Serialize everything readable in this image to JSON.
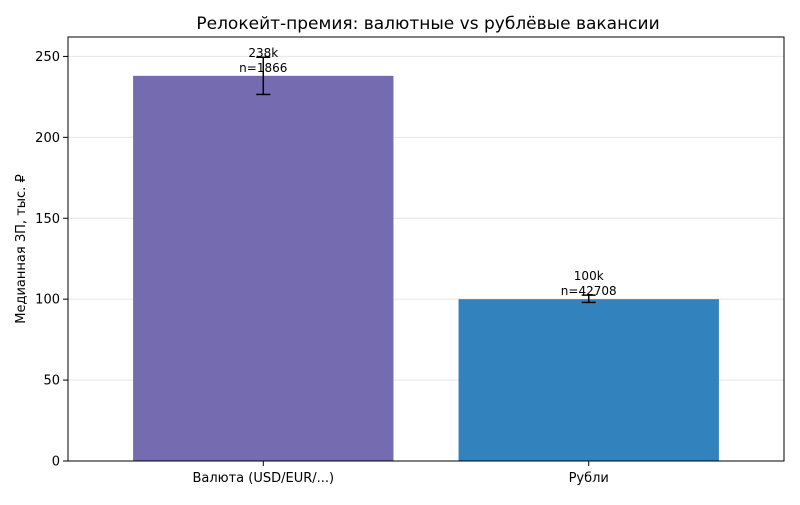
{
  "chart_data": {
    "type": "bar",
    "title": "Релокейт-премия: валютные vs рублёвые вакансии",
    "xlabel": "",
    "ylabel": "Медианная ЗП, тыс. ₽",
    "ylim": [
      0,
      262
    ],
    "yticks": [
      0,
      50,
      100,
      150,
      200,
      250
    ],
    "grid": true,
    "categories": [
      "Валюта (USD/EUR/...)",
      "Рубли"
    ],
    "values": [
      238,
      100
    ],
    "error_low": [
      226.5,
      98
    ],
    "error_high": [
      249.5,
      102.5
    ],
    "bar_colors": [
      "#756bb1",
      "#3182bd"
    ],
    "annotations": [
      {
        "value_label": "238k",
        "n_label": "n=1866"
      },
      {
        "value_label": "100k",
        "n_label": "n=42708"
      }
    ]
  }
}
